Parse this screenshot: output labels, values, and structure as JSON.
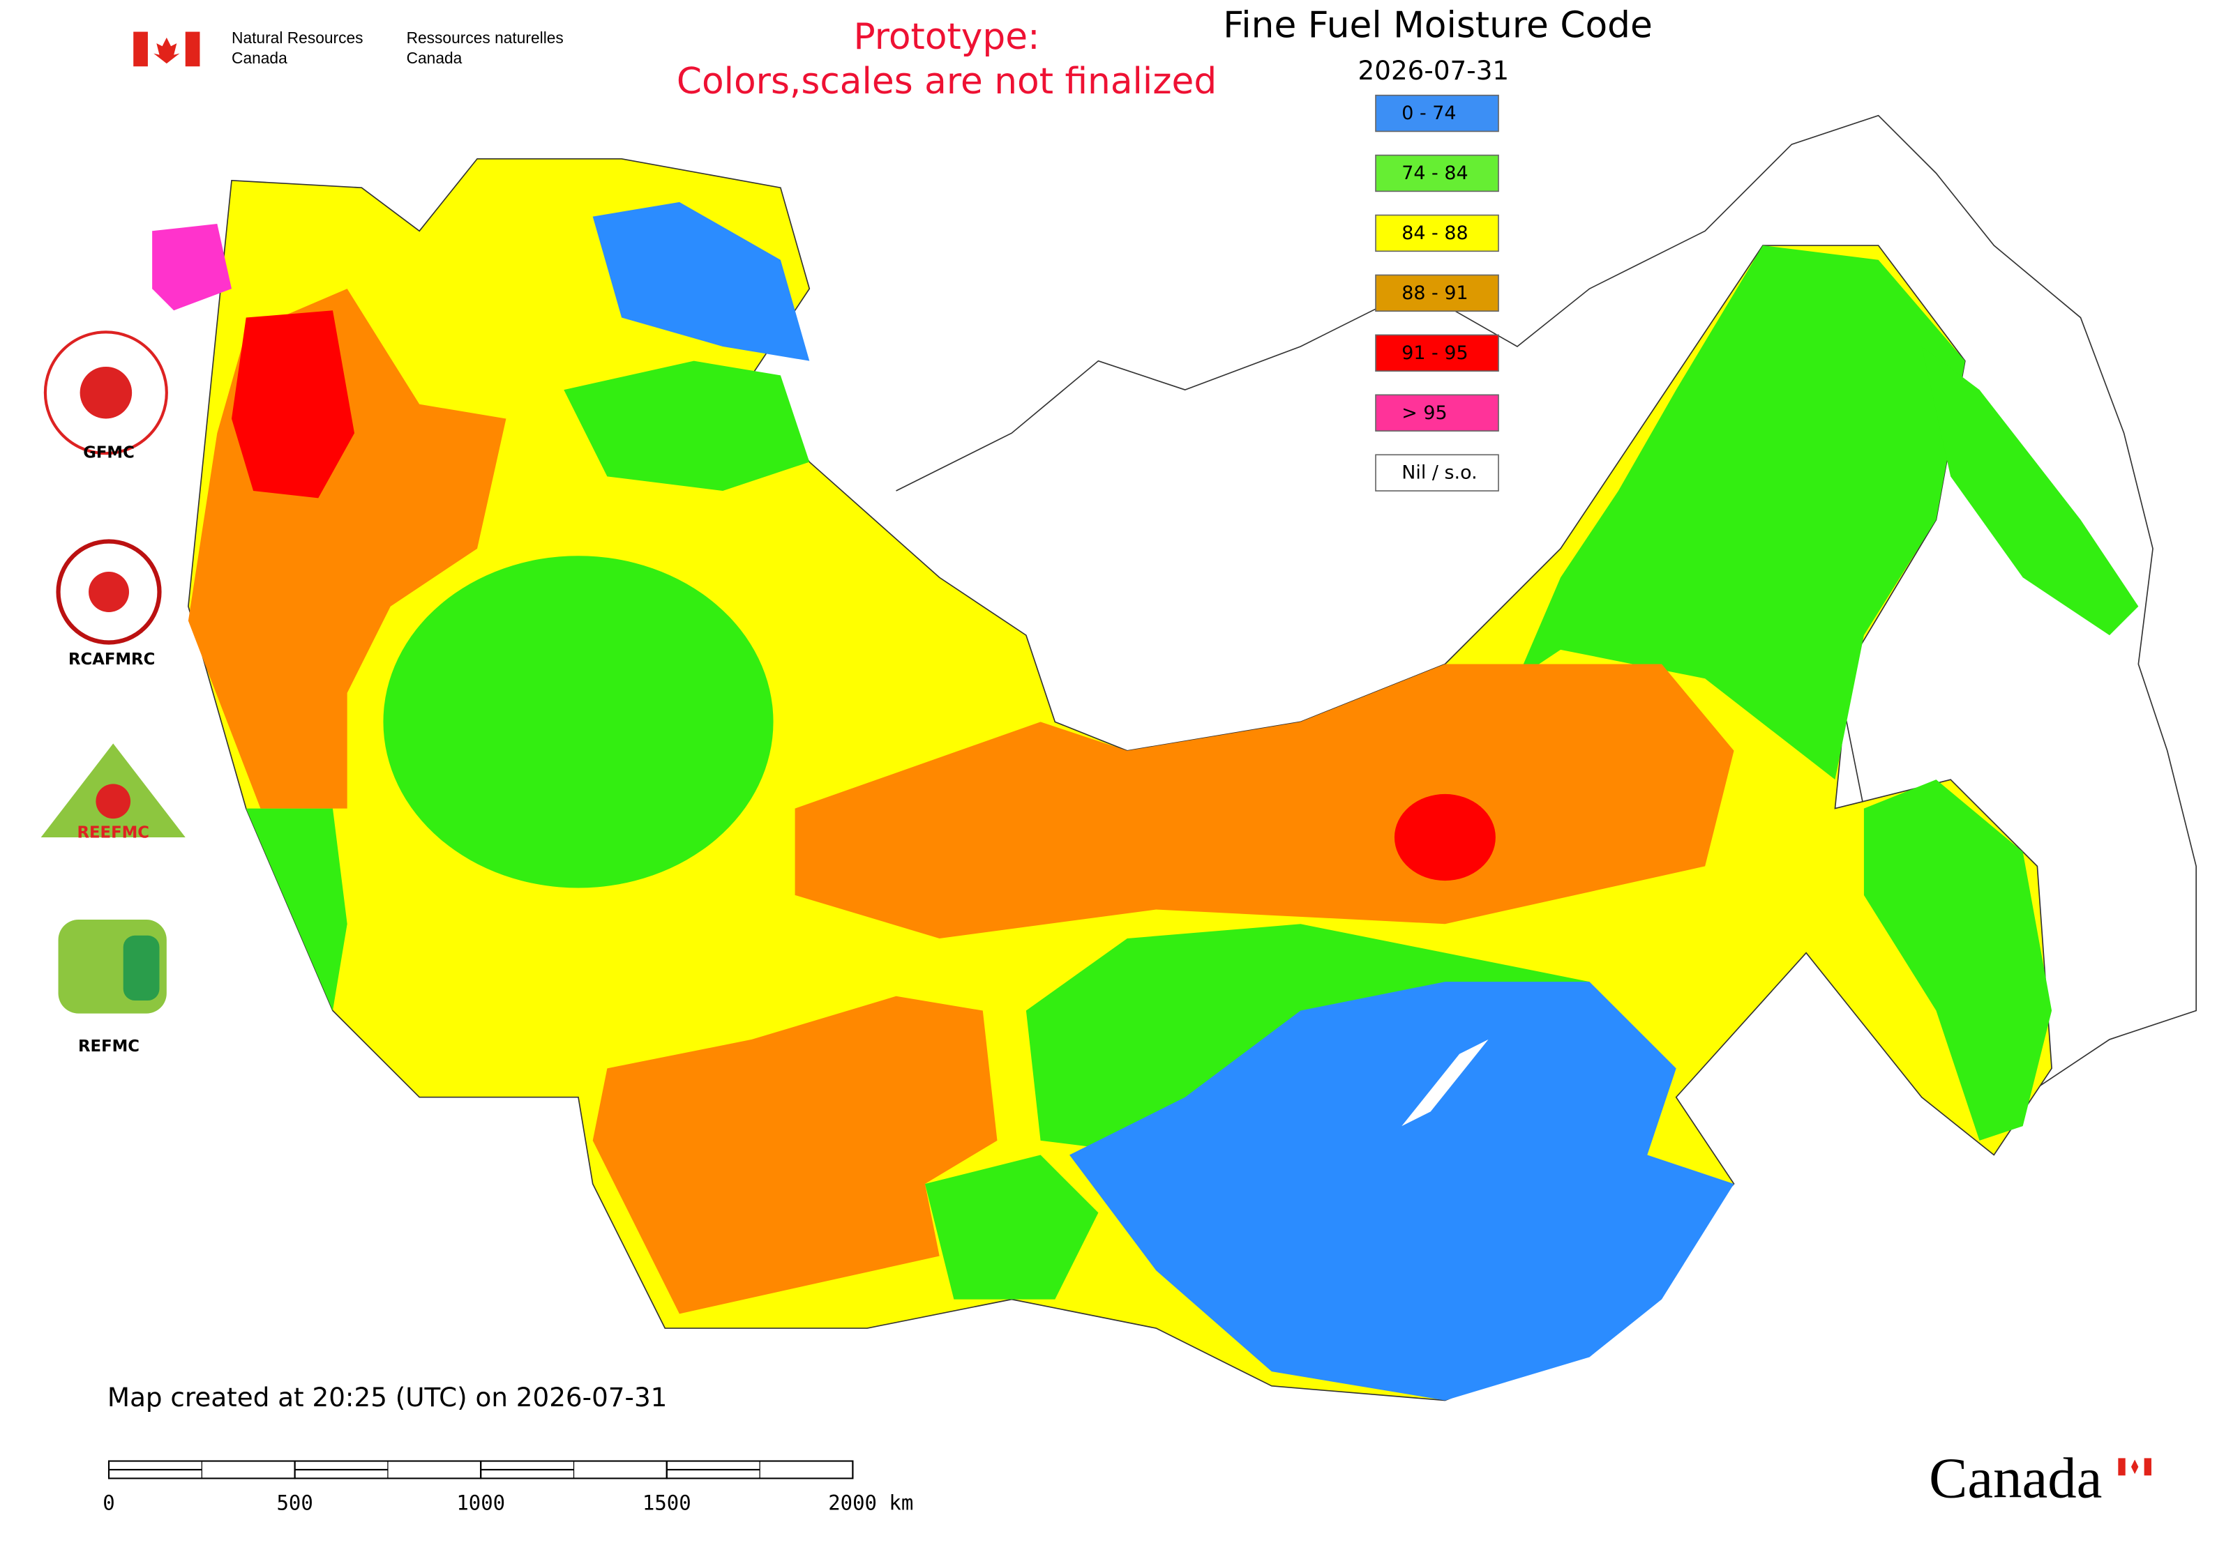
{
  "header": {
    "department_en": [
      "Natural Resources",
      "Canada"
    ],
    "department_fr": [
      "Ressources naturelles",
      "Canada"
    ]
  },
  "notice": [
    "Prototype:",
    "Colors,scales are not finalized"
  ],
  "title": "Fine Fuel Moisture Code",
  "date": "2026-07-31",
  "legend": [
    {
      "label": "0 - 74",
      "color": "#3c8ff5"
    },
    {
      "label": "74 - 84",
      "color": "#66ee33"
    },
    {
      "label": "84 - 88",
      "color": "#ffff00"
    },
    {
      "label": "88 - 91",
      "color": "#dd9900"
    },
    {
      "label": "91 - 95",
      "color": "#ff0000"
    },
    {
      "label": "> 95",
      "color": "#ff3399"
    },
    {
      "label": "Nil / s.o.",
      "color": "#ffffff"
    }
  ],
  "partners": [
    "GFMC",
    "RCAFMRC",
    "REEFMC",
    "REFMC"
  ],
  "footer": "Map created at 20:25 (UTC) on 2026-07-31",
  "scale_bar": {
    "ticks": [
      0,
      500,
      1000,
      1500,
      {
        "value": 2000,
        "label": "2000 km"
      }
    ]
  },
  "wordmark": "Canada"
}
